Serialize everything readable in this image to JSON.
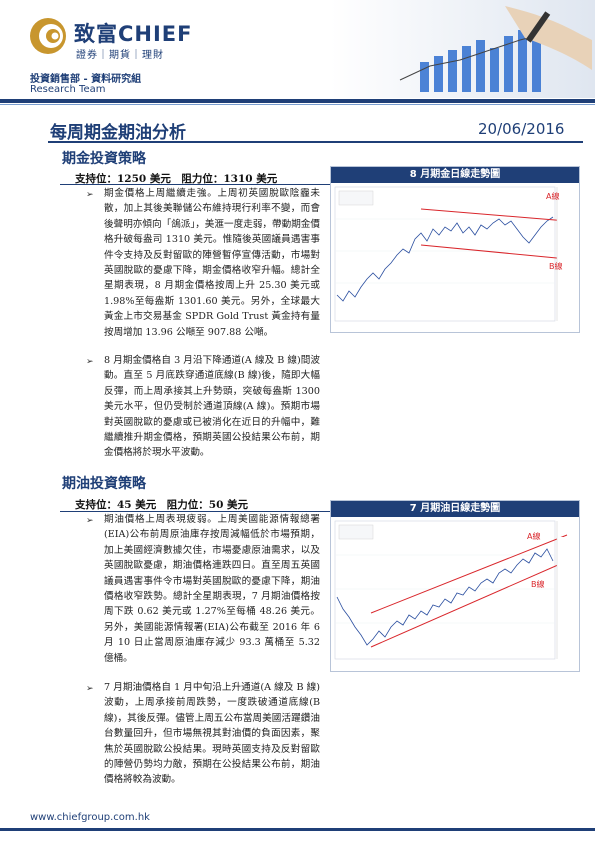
{
  "header": {
    "brand": "致富CHIEF",
    "brand_sub": "證券｜期貨｜理財",
    "department": "投資銷售部 - 資料研究組",
    "team": "Research Team"
  },
  "report": {
    "title": "每周期金期油分析",
    "date": "20/06/2016"
  },
  "gold": {
    "heading": "期金投資策略",
    "support": "支持位：1250 美元　阻力位：1310 美元",
    "paragraphs": [
      "期金價格上周繼續走強。上周初英國脫歐陰霾未散，加上其後美聯儲公布維持現行利率不變，而會後聲明亦傾向「鴿派」，美滙一度走弱，帶動期金價格升破每盎司 1310 美元。惟隨後英國議員遇害事件令支持及反對留歐的陣營暫停宣傳活動，市場對英國脫歐的憂慮下降，期金價格收窄升幅。總計全星期表現，8 月期金價格按周上升 25.30 美元或 1.98%至每盎斯 1301.60 美元。另外，全球最大黃金上市交易基金 SPDR Gold Trust 黃金持有量按周增加 13.96 公噸至 907.88 公噸。",
      "8 月期金價格自 3 月沿下降通道(A 線及 B 線)間波動。直至 5 月底跌穿通道底線(B 線)後，隨即大幅反彈，而上周承接其上升勢頭，突破每盎斯 1300 美元水平，但仍受制於通道頂線(A 線)。預期市場對英國脫歐的憂慮或已被消化在近日的升幅中，難繼續推升期金價格，預期英國公投結果公布前，期金價格將於現水平波動。"
    ],
    "chart": {
      "title": "8 月期金日線走勢圖",
      "label_a": "A線",
      "label_b": "B線"
    }
  },
  "oil": {
    "heading": "期油投資策略",
    "support": "支持位：45 美元　阻力位：50 美元",
    "paragraphs": [
      "期油價格上周表現疲弱。上周美國能源情報總署(EIA)公布前周原油庫存按周減幅低於市場預期，加上美國經濟數據欠佳，市場憂慮原油需求，以及英國脫歐憂慮，期油價格連跌四日。直至周五英國議員遇害事件令市場對英國脫歐的憂慮下降，期油價格收窄跌勢。總計全星期表現，7 月期油價格按周下跌 0.62 美元或 1.27%至每桶 48.26 美元。另外，美國能源情報署(EIA)公布截至 2016 年 6 月 10 日止當周原油庫存減少 93.3 萬桶至 5.32 億桶。",
      "7 月期油價格自 1 月中旬沿上升通道(A 線及 B 線)波動，上周承接前周跌勢，一度跌破通道底線(B 線)，其後反彈。儘管上周五公布當周美國活躍鑽油台數量回升，但市場無視其對油價的負面因素，聚焦於英國脫歐公投結果。現時英國支持及反對留歐的陣營仍勢均力敵，預期在公投結果公布前，期油價格將較為波動。"
    ],
    "chart": {
      "title": "7 月期油日線走勢圖",
      "label_a": "A線",
      "label_b": "B線"
    }
  },
  "footer": {
    "url": "www.chiefgroup.com.hk"
  },
  "colors": {
    "brand_navy": "#1f3f77",
    "channel_red": "#d9262b",
    "price_blue": "#2b4fa0",
    "logo_gold": "#c8962e"
  }
}
